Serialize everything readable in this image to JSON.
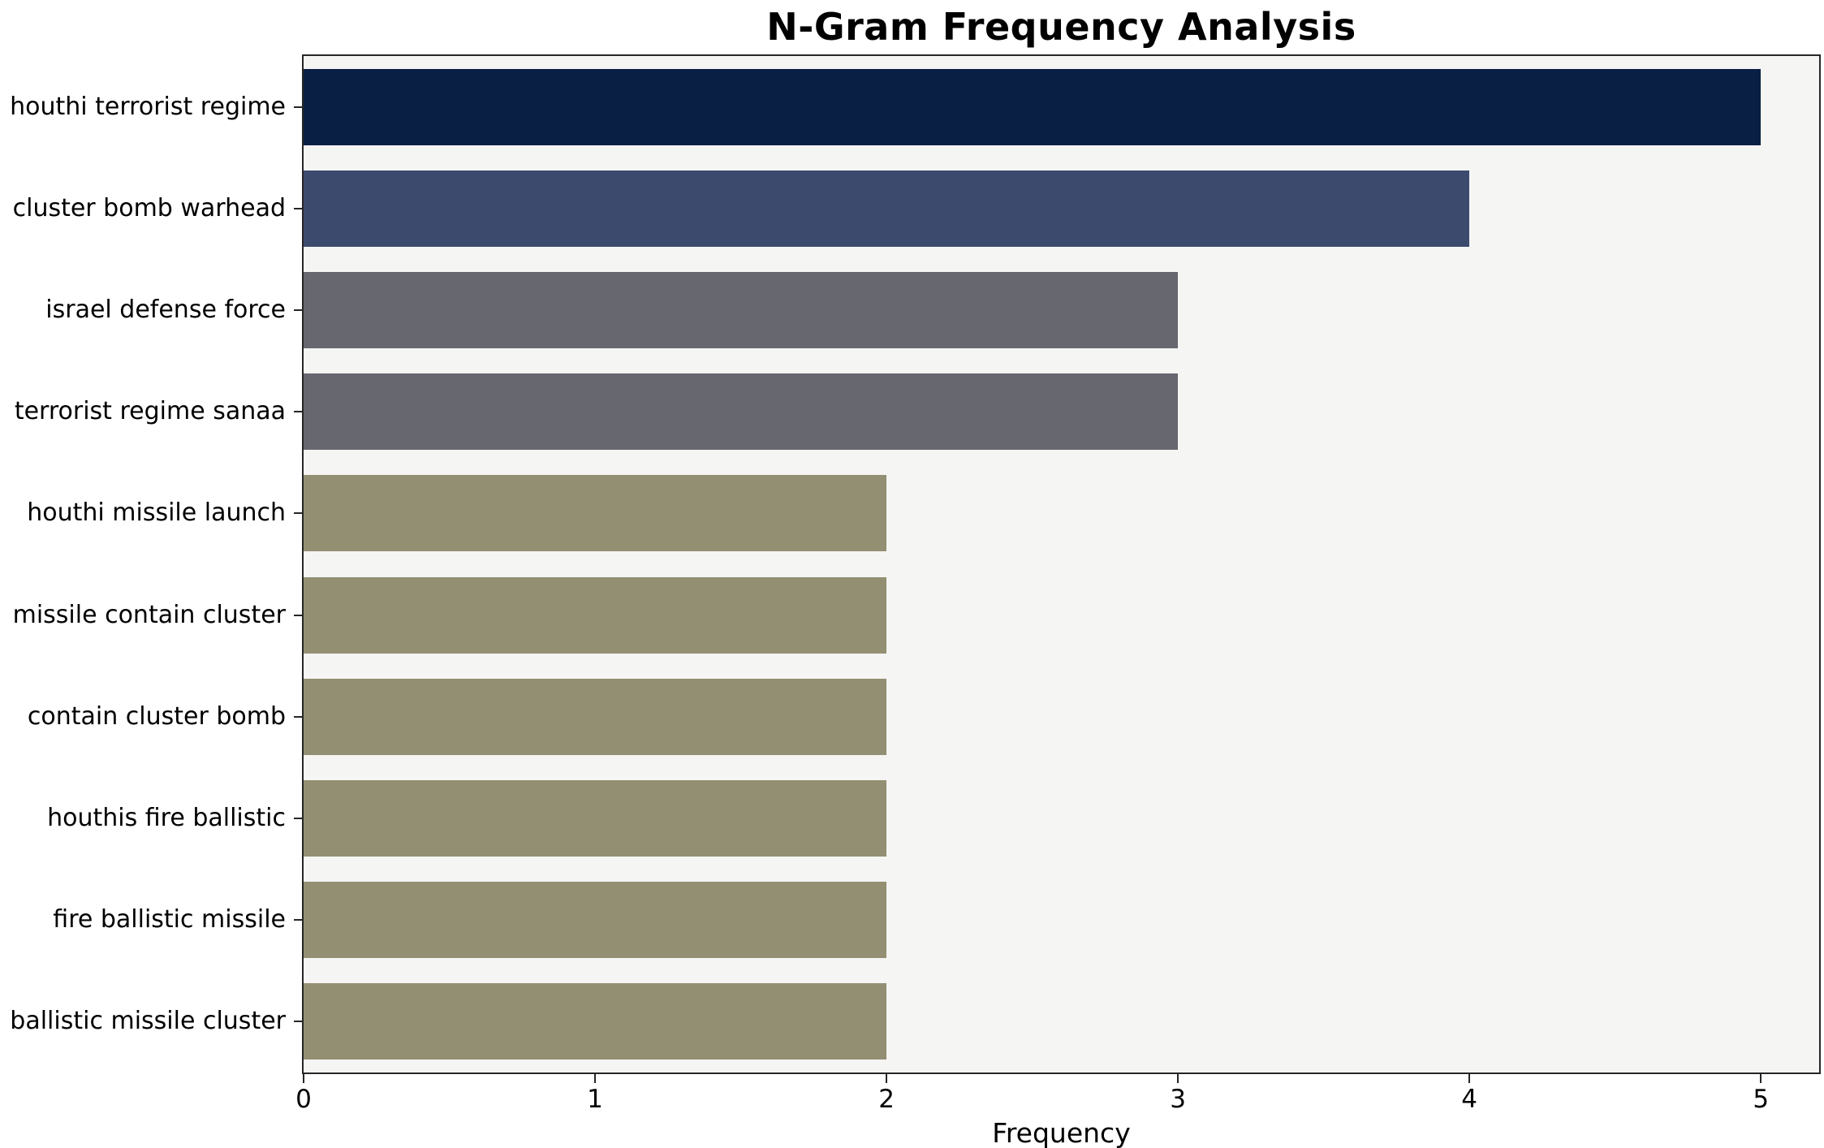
{
  "chart_data": {
    "type": "bar",
    "orientation": "horizontal",
    "title": "N-Gram Frequency Analysis",
    "xlabel": "Frequency",
    "ylabel": "",
    "categories": [
      "houthi terrorist regime",
      "cluster bomb warhead",
      "israel defense force",
      "terrorist regime sanaa",
      "houthi missile launch",
      "missile contain cluster",
      "contain cluster bomb",
      "houthis fire ballistic",
      "fire ballistic missile",
      "ballistic missile cluster"
    ],
    "values": [
      5,
      4,
      3,
      3,
      2,
      2,
      2,
      2,
      2,
      2
    ],
    "bar_colors": [
      "#0a1f44",
      "#3c4a6e",
      "#66676f",
      "#66676f",
      "#938f72",
      "#938f72",
      "#938f72",
      "#938f72",
      "#938f72",
      "#938f72"
    ],
    "xticks": [
      0,
      1,
      2,
      3,
      4,
      5
    ],
    "xlim": [
      0,
      5.2
    ],
    "grid": false,
    "legend": "none",
    "plot_background": "#f5f5f4"
  }
}
